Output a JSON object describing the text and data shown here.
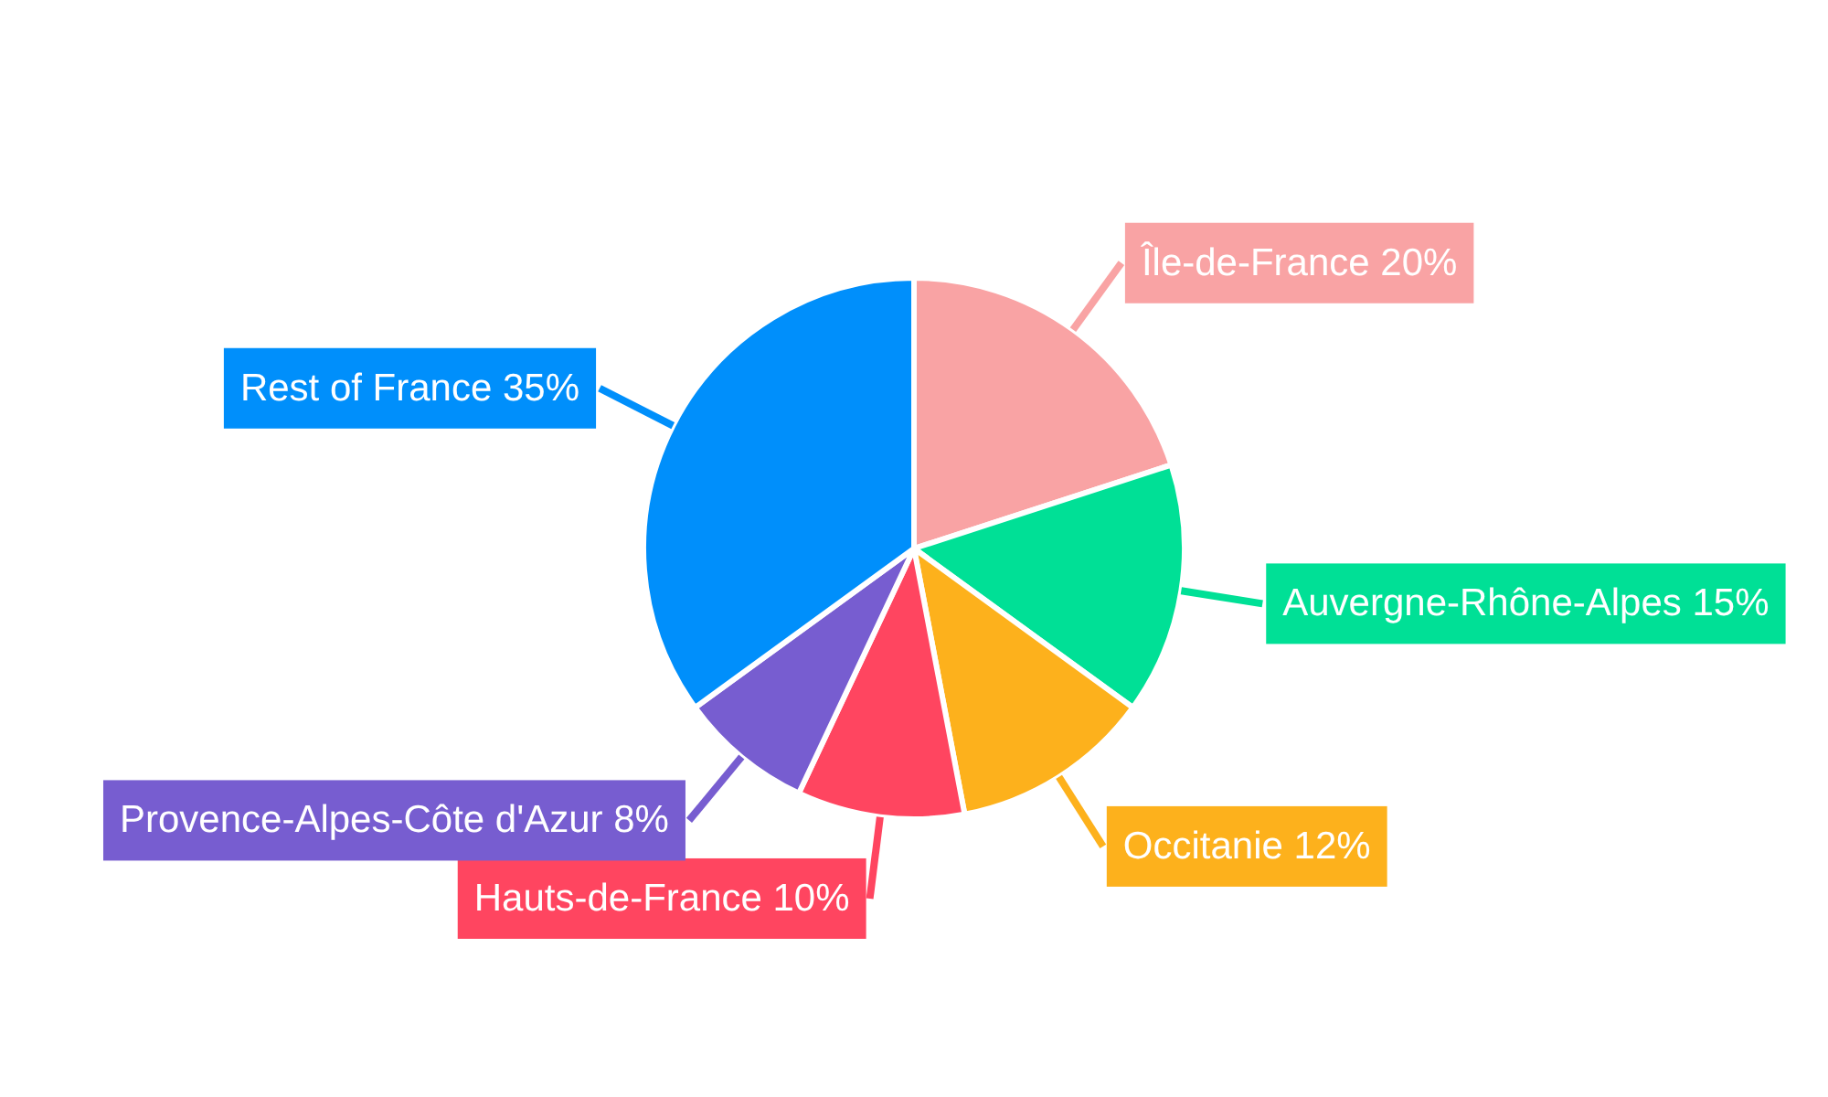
{
  "chart_data": {
    "type": "pie",
    "categories": [
      "Île-de-France",
      "Auvergne-Rhône-Alpes",
      "Occitanie",
      "Hauts-de-France",
      "Provence-Alpes-Côte d'Azur",
      "Rest of France"
    ],
    "values": [
      20,
      15,
      12,
      10,
      8,
      35
    ],
    "value_labels": [
      "20%",
      "15%",
      "12%",
      "10%",
      "8%",
      "35%"
    ],
    "colors": [
      "#f9a3a4",
      "#00e096",
      "#fdb11c",
      "#ff4560",
      "#775dd0",
      "#008ffb"
    ]
  }
}
